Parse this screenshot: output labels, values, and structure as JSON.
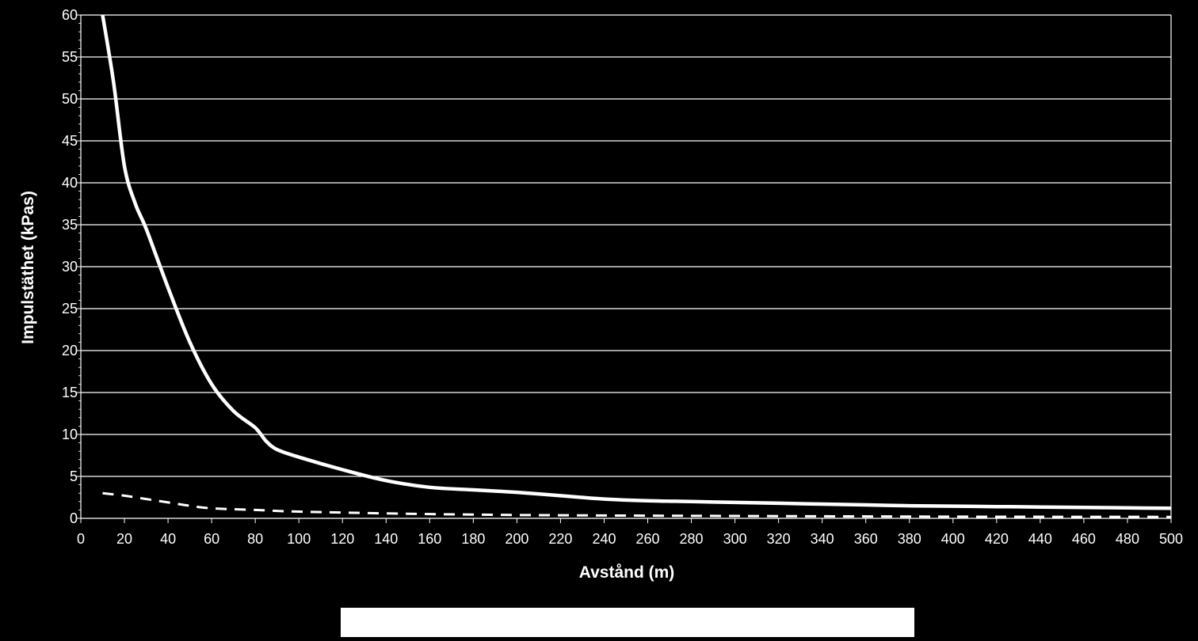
{
  "chart_data": {
    "type": "line",
    "title": "",
    "xlabel": "Avstånd (m)",
    "ylabel": "Impulstäthet (kPas)",
    "xlim": [
      0,
      500
    ],
    "ylim": [
      0,
      60
    ],
    "x_ticks": [
      "0",
      "20",
      "40",
      "60",
      "80",
      "100",
      "120",
      "140",
      "160",
      "180",
      "200",
      "220",
      "240",
      "260",
      "280",
      "300",
      "320",
      "340",
      "360",
      "380",
      "400",
      "420",
      "440",
      "460",
      "480",
      "500"
    ],
    "y_ticks": [
      "0",
      "5",
      "10",
      "15",
      "20",
      "25",
      "30",
      "35",
      "40",
      "45",
      "50",
      "55",
      "60"
    ],
    "grid": "horizontal",
    "background": "#000000",
    "line_color": "#ffffff",
    "series": [
      {
        "style": "solid",
        "points": [
          [
            10,
            60
          ],
          [
            15,
            52
          ],
          [
            20,
            42
          ],
          [
            25,
            37.5
          ],
          [
            30,
            34.5
          ],
          [
            40,
            27.5
          ],
          [
            50,
            21
          ],
          [
            60,
            16
          ],
          [
            70,
            12.8
          ],
          [
            80,
            10.8
          ],
          [
            85,
            9.2
          ],
          [
            90,
            8.2
          ],
          [
            100,
            7.3
          ],
          [
            120,
            5.8
          ],
          [
            140,
            4.5
          ],
          [
            160,
            3.7
          ],
          [
            180,
            3.4
          ],
          [
            200,
            3.1
          ],
          [
            220,
            2.7
          ],
          [
            240,
            2.3
          ],
          [
            260,
            2.1
          ],
          [
            280,
            2.0
          ],
          [
            300,
            1.9
          ],
          [
            320,
            1.8
          ],
          [
            340,
            1.7
          ],
          [
            360,
            1.6
          ],
          [
            380,
            1.5
          ],
          [
            400,
            1.45
          ],
          [
            420,
            1.4
          ],
          [
            440,
            1.35
          ],
          [
            460,
            1.3
          ],
          [
            480,
            1.25
          ],
          [
            500,
            1.2
          ]
        ]
      },
      {
        "style": "dashed",
        "points": [
          [
            10,
            3.0
          ],
          [
            20,
            2.7
          ],
          [
            30,
            2.3
          ],
          [
            40,
            1.9
          ],
          [
            50,
            1.5
          ],
          [
            60,
            1.2
          ],
          [
            80,
            1.0
          ],
          [
            100,
            0.8
          ],
          [
            150,
            0.55
          ],
          [
            200,
            0.4
          ],
          [
            250,
            0.33
          ],
          [
            300,
            0.28
          ],
          [
            350,
            0.24
          ],
          [
            400,
            0.2
          ],
          [
            450,
            0.18
          ],
          [
            500,
            0.17
          ]
        ]
      }
    ]
  }
}
